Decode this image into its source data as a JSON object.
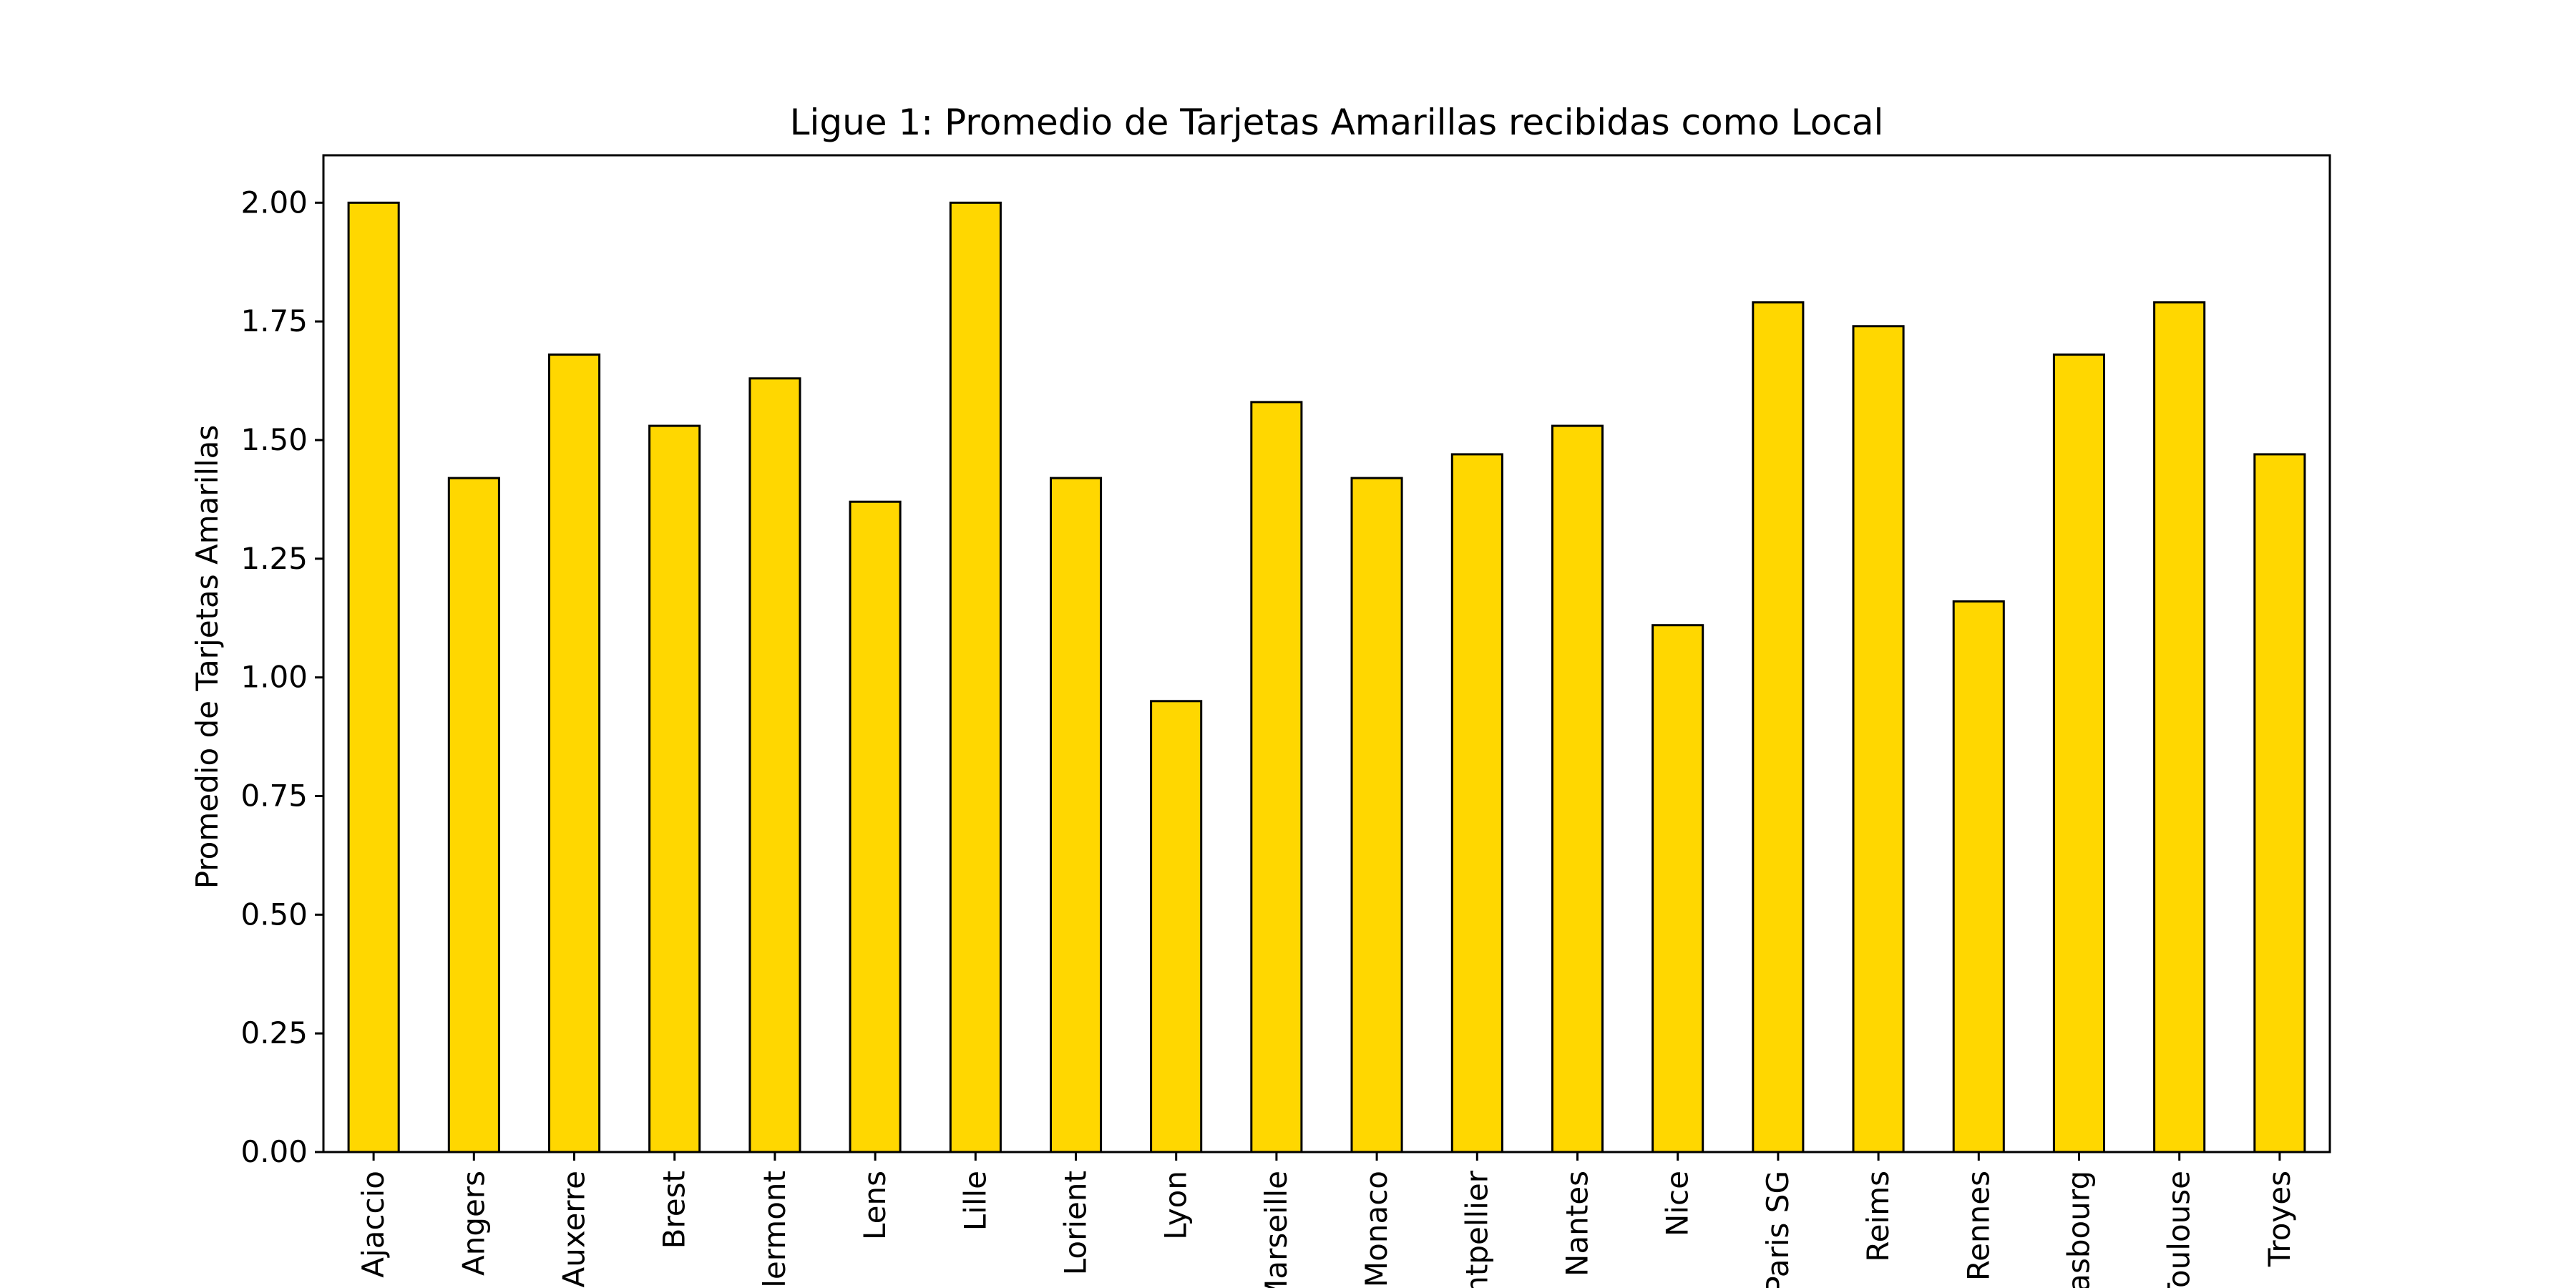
{
  "chart_data": {
    "type": "bar",
    "title": "Ligue 1: Promedio de Tarjetas Amarillas recibidas como Local",
    "xlabel": "",
    "ylabel": "Promedio de Tarjetas Amarillas",
    "ylim": [
      0,
      2.1
    ],
    "yticks": [
      "0.00",
      "0.25",
      "0.50",
      "0.75",
      "1.00",
      "1.25",
      "1.50",
      "1.75",
      "2.00"
    ],
    "grid": false,
    "categories": [
      "Ajaccio",
      "Angers",
      "Auxerre",
      "Brest",
      "Clermont",
      "Lens",
      "Lille",
      "Lorient",
      "Lyon",
      "Marseille",
      "Monaco",
      "Montpellier",
      "Nantes",
      "Nice",
      "Paris SG",
      "Reims",
      "Rennes",
      "Strasbourg",
      "Toulouse",
      "Troyes"
    ],
    "values": [
      2.0,
      1.42,
      1.68,
      1.53,
      1.63,
      1.37,
      2.0,
      1.42,
      0.95,
      1.58,
      1.42,
      1.47,
      1.53,
      1.11,
      1.79,
      1.74,
      1.16,
      1.68,
      1.79,
      1.47
    ],
    "colors": {
      "bar": "#FFD700",
      "edge": "#000000"
    }
  }
}
